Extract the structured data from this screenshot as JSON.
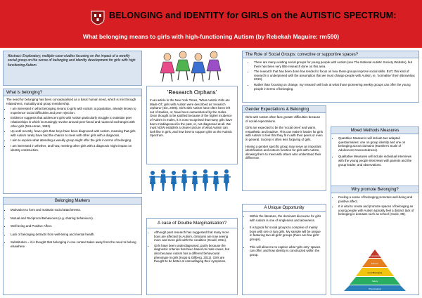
{
  "header": {
    "title": "BELONGING and IDENTITY for GIRLS on the AUTISTIC SPECTRUM:",
    "subtitle": "What belonging means to girls with high-functioning Autism (by Rebekah Maguire: rm590)"
  },
  "abstract": {
    "text": "Abstract: Exploratory, multiple-case-studies focusing on the impact of a weekly social group on the sense of belonging and identity development for girls with high functioning Autism."
  },
  "what_is_belonging": {
    "title": "What is belonging?",
    "intro": "The need for belonging has been conceptualised as a basic human need, which is met through relatedness, mutuality and group membership.",
    "items": [
      "I am interested in what belonging means to girls with Autism; a population, already known to experience social difficulties and peer rejection.",
      "Evidence suggests that adolescent girls with Autism particularly struggle to maintain peer relationships in which increasingly revolve around peer-faced and nuanced exchanges with other girls (McLennan, 1993).",
      "Up until recently, fewer girls than boys have been diagnosed with Autism, meaning that girls with Autism rarely have had the chance to meet with other girls with a diagnosis.",
      "I aim to explore what attending a weekly group might offer the girls in terms of belonging.",
      "I am interested in whether, and how, meeting other girls with a diagnosis might impact on identity construction."
    ]
  },
  "belonging_markers": {
    "title": "Belonging Markers",
    "items": [
      "Motivation to form and maintain social attachments.",
      "Mutual and Reciprocal Behaviours (e.g. sharing behaviours).",
      "Well-being and Positive Affect.",
      "Lack of belonging detracts from well-being and mental health.",
      "Substitution = it is thought that belonging in one context takes away from the need to belong elsewhere."
    ]
  },
  "research_orphans": {
    "title": "'Research Orphans'",
    "text": "In an article in the New York Times, 'What Autistic Girls are Made Of', girls with Autism were described as 'research orphans' (Sin, 2006). Girls with Autism have often been left out of studies, or, have been outnumbered by the males. Once thought to be justified because of the higher incidence of Autism in males, it is now recognised that many girls have been misdiagnosed in the past, or, not diagnosed at all. We must NOW establish a clearer picture of what Autism can look like in girls, and how best to support girls on the Autistic Spectrum."
  },
  "double_marginalisation": {
    "title": "A case of Double Marginalisation?",
    "items": [
      "Although past research has suggested that many more boys are affected by Autism, clinicians are now seeing more and more girls with the condition (Gould, 2011).",
      "Girls have been underdiagnosed, partly because the diagnostic criterion has been based on male cases, but also because Autism has a different behavioural phenotype in girls (Kopp & Gillberg, 2011). Girls are thought to be better at camouflaging their symptoms."
    ]
  },
  "role_of_social_groups": {
    "title": "The Role of Social Groups: corrective or supportive spaces?",
    "items": [
      "There are many existing social groups for young people with Autism (see The National Autistic Society Website), but there has been very little research done on this area.",
      "The research that has been done has tended to focus on how these groups improve social skills. BUT, this kind of research is underpinned with the assumption that we must change people with Autism, ie, 'normalise' them (Brownlow, 2010).",
      "Rather than focusing on change, my research will look at what those pioneering weekly groups can offer the young people in terms of belonging."
    ]
  },
  "gender_expectations": {
    "title": "Gender Expectations & Belonging",
    "p1": "Girls with Autism often face greater difficulties because of social expectations.",
    "p2": "Girls are expected to be the 'social ones' and warm, empathetic and intuitive. This can make it harder for girls with Autism to feel that they fit in with their peers or even in general. Society is often less forgiving of girls.",
    "p3": "Having a gender specific group may serve an important identification and esteem function for girls with Autism, allowing them to meet with others who understand their difference."
  },
  "unique_opportunity": {
    "title": "A Unique Opportunity",
    "items": [
      "Within the literature, the dominant discourse for girls with Autism is one of singleness and aloneness.",
      "It is typical for social groups to comprise of mainly boys with one or two girls. My sample will be unique in featuring two all-girls' groups (there are few girls' groups).",
      "This will allow me to explore what 'girls only' spaces can offer, and how identity is constructed within the group."
    ]
  },
  "mixed_methods": {
    "title": "Mixed Methods Measures",
    "items": [
      "Quantitive Measures will include two adapted questionnaires: one on group identity and one on belonging across domains (Kanther's Scale of Adolescent Connectedness).",
      "Qualitative Measures will include individual interviews with the young people interviews with parents and the group leader, and observations."
    ]
  },
  "why_promote": {
    "title": "Why promote Belonging?",
    "items": [
      "Feeling a sense of belonging promotes well-being and positive affect.",
      "It is vital to create and promote spaces of belonging as young people with Autism typically feel a distinct lack of belonging in domains such as school (Hoole, 09)."
    ],
    "pyramid_labels": [
      "Self-actualisation",
      "Esteem",
      "Love/Belonging",
      "Safety",
      "Physiological"
    ]
  },
  "colors": {
    "header_red": "#d71f23",
    "box_border": "#8ba8c8",
    "box_header": "#dbe5f1"
  }
}
